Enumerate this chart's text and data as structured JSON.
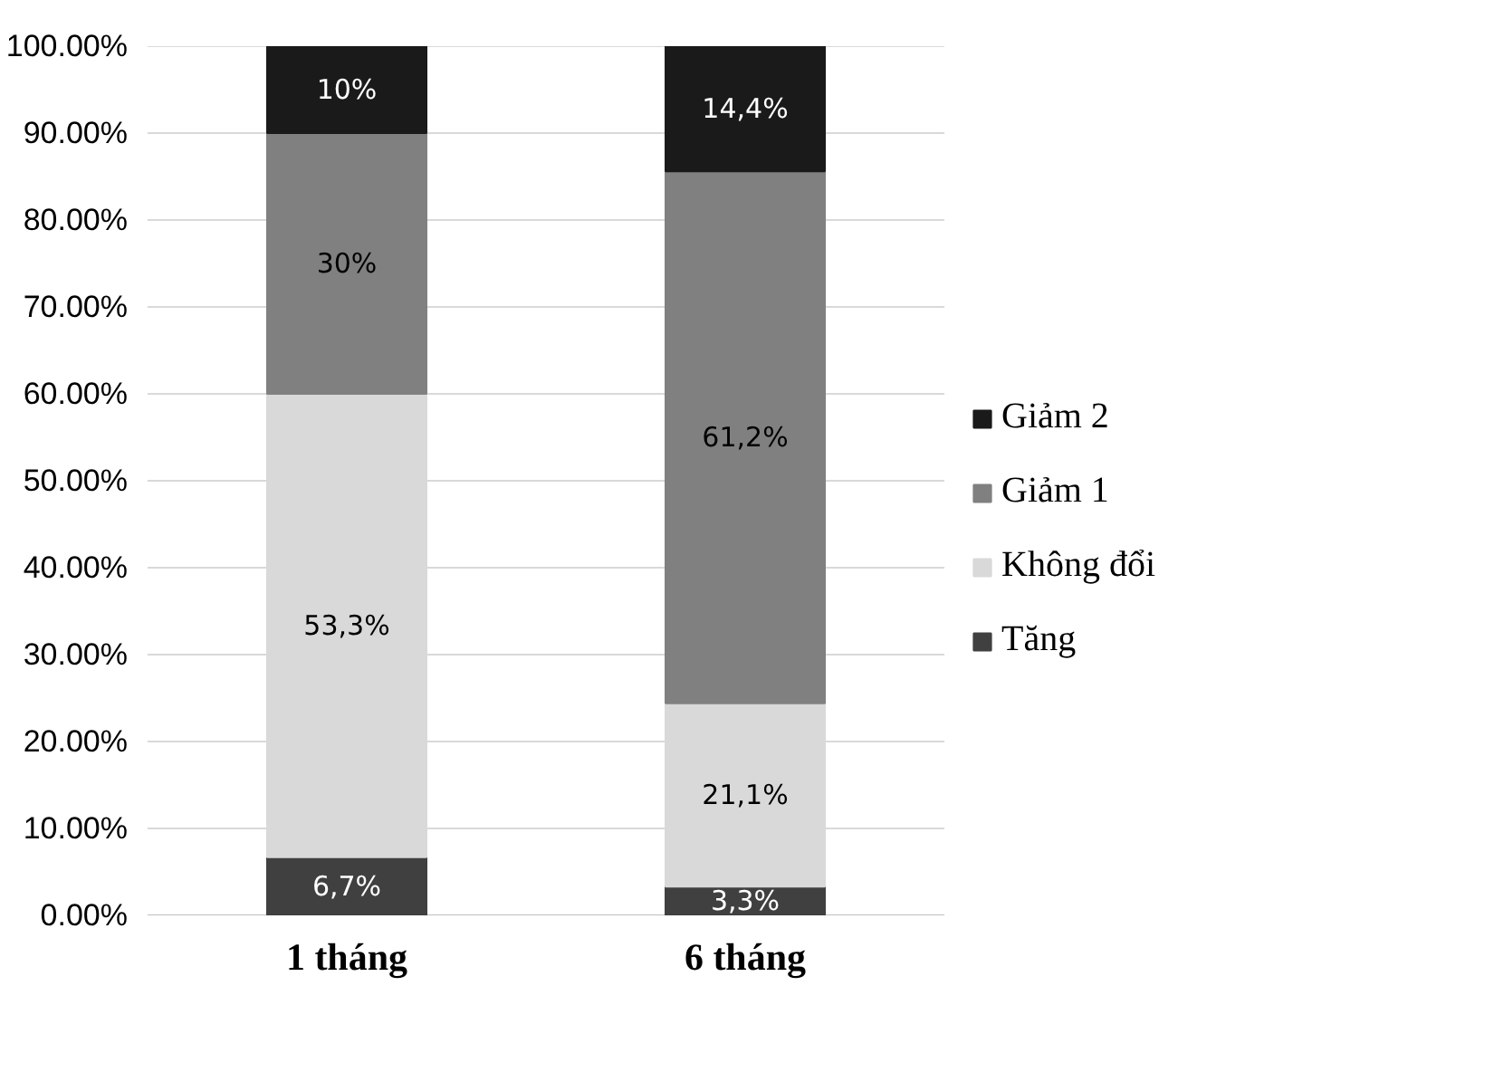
{
  "chart_data": {
    "type": "bar",
    "stacked": true,
    "categories": [
      "1 tháng",
      "6 tháng"
    ],
    "series": [
      {
        "name": "Tăng",
        "color": "#404040",
        "values": [
          6.7,
          3.3
        ],
        "value_labels": [
          "6,7%",
          "3,3%"
        ]
      },
      {
        "name": "Không đổi",
        "color": "#d9d9d9",
        "values": [
          53.3,
          21.1
        ],
        "value_labels": [
          "53,3%",
          "21,1%"
        ]
      },
      {
        "name": "Giảm 1",
        "color": "#808080",
        "values": [
          30,
          61.2
        ],
        "value_labels": [
          "30%",
          "61,2%"
        ]
      },
      {
        "name": "Giảm 2",
        "color": "#1a1a1a",
        "values": [
          10,
          14.4
        ],
        "value_labels": [
          "10%",
          "14,4%"
        ]
      }
    ],
    "ylim": [
      0,
      100
    ],
    "yticks": [
      {
        "value": 0,
        "label": "0.00%"
      },
      {
        "value": 10,
        "label": "10.00%"
      },
      {
        "value": 20,
        "label": "20.00%"
      },
      {
        "value": 30,
        "label": "30.00%"
      },
      {
        "value": 40,
        "label": "40.00%"
      },
      {
        "value": 50,
        "label": "50.00%"
      },
      {
        "value": 60,
        "label": "60.00%"
      },
      {
        "value": 70,
        "label": "70.00%"
      },
      {
        "value": 80,
        "label": "80.00%"
      },
      {
        "value": 90,
        "label": "90.00%"
      },
      {
        "value": 100,
        "label": "100.00%"
      }
    ],
    "grid": "y",
    "legend": "right"
  }
}
